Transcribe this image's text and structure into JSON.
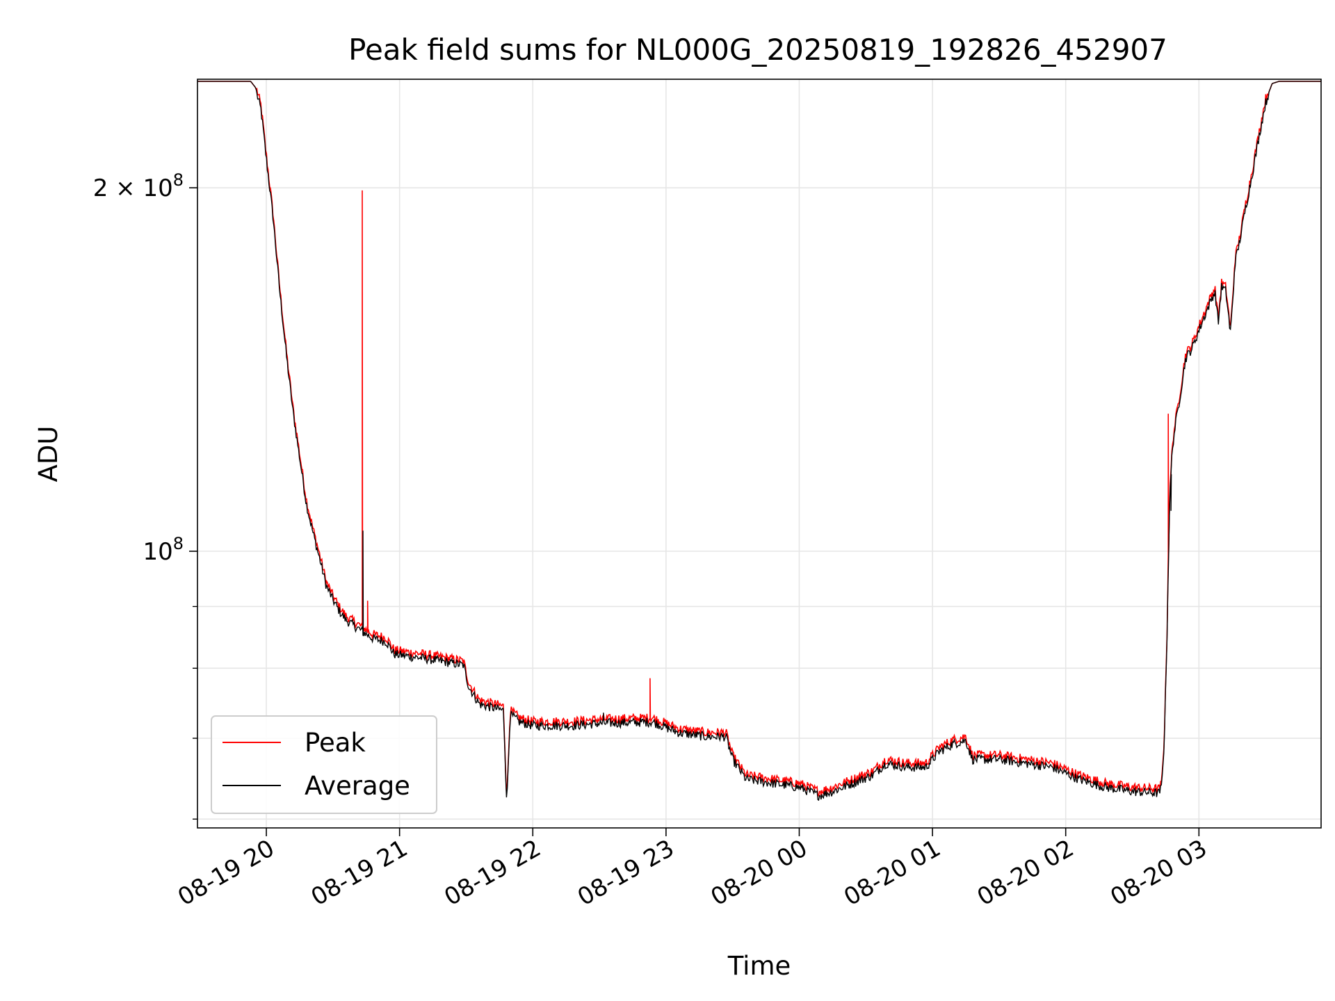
{
  "chart_data": {
    "type": "line",
    "title": "Peak field sums for NL000G_20250819_192826_452907",
    "xlabel": "Time",
    "ylabel": "ADU",
    "x_ticks": [
      "08-19 20",
      "08-19 21",
      "08-19 22",
      "08-19 23",
      "08-20 00",
      "08-20 01",
      "08-20 02",
      "08-20 03"
    ],
    "x_tick_hours": [
      20,
      21,
      22,
      23,
      24,
      25,
      26,
      27
    ],
    "xlim_hours": [
      19.483,
      27.917
    ],
    "y_scale": "log",
    "ylim": [
      59000000,
      246000000
    ],
    "y_major_ticks": [
      {
        "value": 100000000,
        "base": "10",
        "exp": "8"
      },
      {
        "value": 200000000,
        "base": "2 × 10",
        "exp": "8"
      }
    ],
    "y_minor_ticks": [
      60000000,
      70000000,
      80000000,
      90000000
    ],
    "grid": true,
    "legend_position": "lower-left",
    "series": [
      {
        "name": "Peak",
        "color": "#ff0000"
      },
      {
        "name": "Average",
        "color": "#000000"
      }
    ],
    "base_curve": [
      [
        19.483,
        245000000
      ],
      [
        19.883,
        245000000
      ],
      [
        19.92,
        242000000
      ],
      [
        19.96,
        233000000
      ],
      [
        20.0,
        212000000
      ],
      [
        20.05,
        190000000
      ],
      [
        20.1,
        165000000
      ],
      [
        20.15,
        146000000
      ],
      [
        20.2,
        131000000
      ],
      [
        20.25,
        120000000
      ],
      [
        20.3,
        110000000
      ],
      [
        20.35,
        104000000
      ],
      [
        20.4,
        99000000
      ],
      [
        20.45,
        94000000
      ],
      [
        20.5,
        91500000
      ],
      [
        20.55,
        89500000
      ],
      [
        20.6,
        88000000
      ],
      [
        20.7,
        86500000
      ],
      [
        20.8,
        85000000
      ],
      [
        20.9,
        84500000
      ],
      [
        20.96,
        82500000
      ],
      [
        21.2,
        81800000
      ],
      [
        21.48,
        80800000
      ],
      [
        21.52,
        77500000
      ],
      [
        21.6,
        75000000
      ],
      [
        21.7,
        74500000
      ],
      [
        21.8,
        74000000
      ],
      [
        21.9,
        72500000
      ],
      [
        22.0,
        72000000
      ],
      [
        22.3,
        72000000
      ],
      [
        22.5,
        72300000
      ],
      [
        22.9,
        72500000
      ],
      [
        23.1,
        71000000
      ],
      [
        23.3,
        70500000
      ],
      [
        23.45,
        70500000
      ],
      [
        23.5,
        67500000
      ],
      [
        23.6,
        65000000
      ],
      [
        23.8,
        64500000
      ],
      [
        24.0,
        64000000
      ],
      [
        24.15,
        63000000
      ],
      [
        24.25,
        63500000
      ],
      [
        24.4,
        64500000
      ],
      [
        24.55,
        65500000
      ],
      [
        24.65,
        67000000
      ],
      [
        24.8,
        66500000
      ],
      [
        24.95,
        66500000
      ],
      [
        25.05,
        68500000
      ],
      [
        25.15,
        69500000
      ],
      [
        25.25,
        70000000
      ],
      [
        25.3,
        67500000
      ],
      [
        25.5,
        67500000
      ],
      [
        25.7,
        67000000
      ],
      [
        25.9,
        66500000
      ],
      [
        26.1,
        65000000
      ],
      [
        26.3,
        64000000
      ],
      [
        26.5,
        63500000
      ],
      [
        26.7,
        63300000
      ],
      [
        26.72,
        64000000
      ],
      [
        26.74,
        70000000
      ],
      [
        26.76,
        85000000
      ],
      [
        26.78,
        110000000
      ],
      [
        26.8,
        122000000
      ],
      [
        26.82,
        127000000
      ],
      [
        26.85,
        133000000
      ],
      [
        26.9,
        145000000
      ],
      [
        26.95,
        148000000
      ],
      [
        27.0,
        153000000
      ],
      [
        27.05,
        158000000
      ],
      [
        27.1,
        163000000
      ],
      [
        27.15,
        167000000
      ],
      [
        27.2,
        165000000
      ],
      [
        27.25,
        170000000
      ],
      [
        27.3,
        180000000
      ],
      [
        27.35,
        193000000
      ],
      [
        27.4,
        206000000
      ],
      [
        27.45,
        221000000
      ],
      [
        27.5,
        236000000
      ],
      [
        27.55,
        244000000
      ],
      [
        27.6,
        245000000
      ],
      [
        27.917,
        245000000
      ]
    ],
    "dips": [
      [
        21.78,
        21.83,
        62000000
      ],
      [
        27.2,
        27.27,
        152000000
      ],
      [
        27.12,
        27.17,
        155000000
      ]
    ],
    "spikes": [
      {
        "series": "Peak",
        "x": 20.72,
        "y": 199000000
      },
      {
        "series": "Average",
        "x": 20.725,
        "y": 104000000
      },
      {
        "series": "Peak",
        "x": 20.76,
        "y": 91000000
      },
      {
        "series": "Peak",
        "x": 22.88,
        "y": 78500000
      },
      {
        "series": "Average",
        "x": 22.53,
        "y": 73500000
      },
      {
        "series": "Peak",
        "x": 26.77,
        "y": 130000000
      },
      {
        "series": "Average",
        "x": 26.79,
        "y": 108000000
      }
    ]
  }
}
